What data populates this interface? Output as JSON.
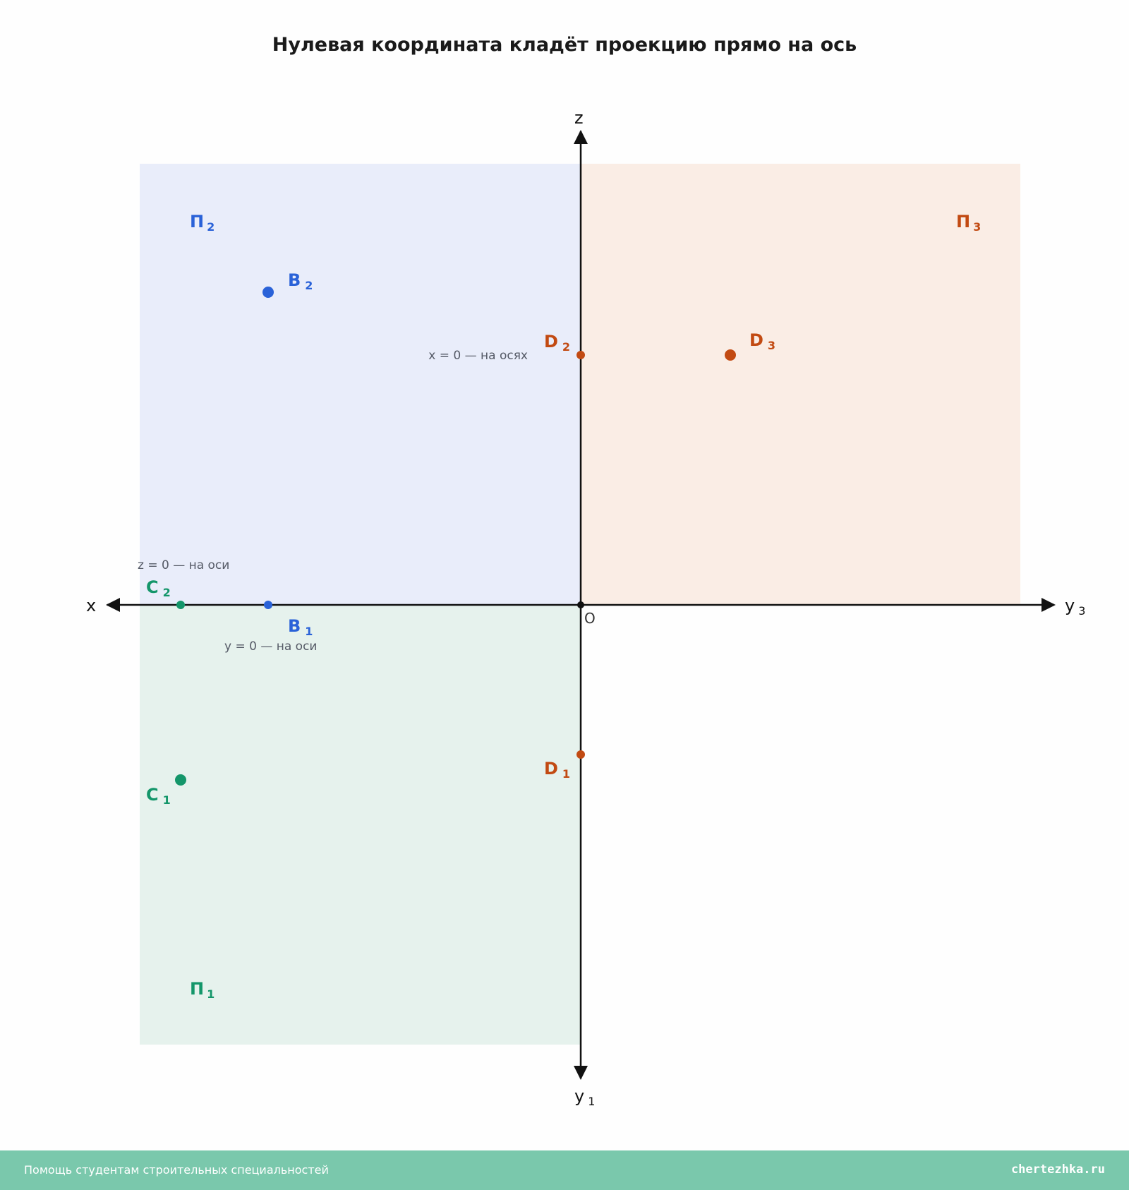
{
  "title": "Нулевая координата кладёт проекцию прямо на ось",
  "colors": {
    "blue": "#2a62d8",
    "green": "#14966a",
    "orange": "#c24a12",
    "plane_p2": "#e9edfa",
    "plane_p3": "#faede5",
    "plane_p1": "#e6f2ed",
    "axis": "#111111",
    "footer": "#7ac8ac"
  },
  "axes": {
    "x": "x",
    "z": "z",
    "y3": {
      "main": "y",
      "sub": "3"
    },
    "y1": {
      "main": "y",
      "sub": "1"
    },
    "origin": "O"
  },
  "planes": {
    "p2": {
      "main": "П",
      "sub": "2"
    },
    "p3": {
      "main": "П",
      "sub": "3"
    },
    "p1": {
      "main": "П",
      "sub": "1"
    }
  },
  "points": {
    "b2": {
      "main": "B",
      "sub": "2"
    },
    "b1": {
      "main": "B",
      "sub": "1"
    },
    "c2": {
      "main": "C",
      "sub": "2"
    },
    "c1": {
      "main": "C",
      "sub": "1"
    },
    "d2": {
      "main": "D",
      "sub": "2"
    },
    "d3": {
      "main": "D",
      "sub": "3"
    },
    "d1": {
      "main": "D",
      "sub": "1"
    }
  },
  "notes": {
    "x_zero": "x = 0 — на осях",
    "z_zero": "z = 0 — на оси",
    "y_zero": "y = 0 — на оси"
  },
  "footer": {
    "left": "Помощь студентам строительных специальностей",
    "right": "chertezhka.ru"
  }
}
